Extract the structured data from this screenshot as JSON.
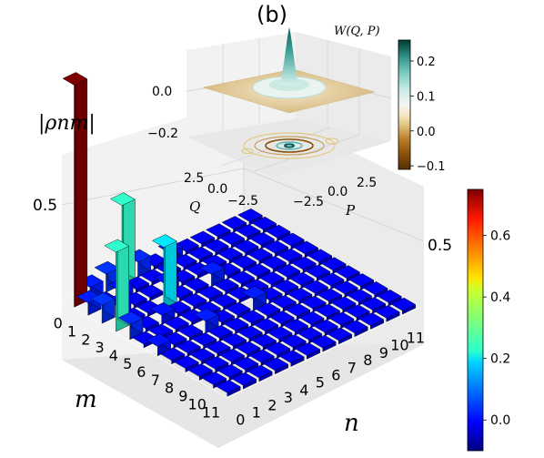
{
  "panel_label": "(b)",
  "chart_data": [
    {
      "type": "bar3d",
      "title": "",
      "zlabel": "|ρnm|",
      "xlabel": "m",
      "ylabel": "n",
      "m_ticks": [
        "0",
        "1",
        "2",
        "3",
        "4",
        "5",
        "6",
        "7",
        "8",
        "9",
        "10",
        "11"
      ],
      "n_ticks": [
        "0",
        "1",
        "2",
        "3",
        "4",
        "5",
        "6",
        "7",
        "8",
        "9",
        "10",
        "11"
      ],
      "z_ticks": [
        "0.5"
      ],
      "zlim": [
        0,
        0.8
      ],
      "bars": [
        {
          "m": 0,
          "n": 0,
          "value": 0.75
        },
        {
          "m": 0,
          "n": 1,
          "value": 0.03
        },
        {
          "m": 1,
          "n": 0,
          "value": 0.03
        },
        {
          "m": 0,
          "n": 2,
          "value": 0.05
        },
        {
          "m": 2,
          "n": 0,
          "value": 0.05
        },
        {
          "m": 0,
          "n": 3,
          "value": 0.26
        },
        {
          "m": 3,
          "n": 0,
          "value": 0.26
        },
        {
          "m": 0,
          "n": 4,
          "value": 0.04
        },
        {
          "m": 4,
          "n": 0,
          "value": 0.04
        },
        {
          "m": 0,
          "n": 6,
          "value": 0.02
        },
        {
          "m": 6,
          "n": 0,
          "value": 0.02
        },
        {
          "m": 3,
          "n": 3,
          "value": 0.2
        },
        {
          "m": 1,
          "n": 2,
          "value": 0.02
        },
        {
          "m": 2,
          "n": 1,
          "value": 0.02
        },
        {
          "m": 2,
          "n": 4,
          "value": 0.02
        },
        {
          "m": 4,
          "n": 2,
          "value": 0.02
        },
        {
          "m": 3,
          "n": 6,
          "value": 0.03
        },
        {
          "m": 6,
          "n": 3,
          "value": 0.03
        },
        {
          "m": 6,
          "n": 6,
          "value": 0.03
        }
      ],
      "colorbar": {
        "cmap": "jet",
        "range": [
          -0.1,
          0.75
        ],
        "ticks": [
          "0.0",
          "0.2",
          "0.4",
          "0.6"
        ]
      }
    },
    {
      "type": "surface3d",
      "title": "W(Q, P)",
      "xlabel": "Q",
      "ylabel": "P",
      "q_ticks": [
        "2.5",
        "0.0",
        "−2.5"
      ],
      "p_ticks": [
        "−2.5",
        "0.0",
        "2.5"
      ],
      "z_ticks": [
        "0.0",
        "−0.2"
      ],
      "zlim": [
        -0.25,
        0.25
      ],
      "peak_value": 0.25,
      "min_value": -0.1,
      "colorbar": {
        "cmap": "BrBG",
        "range": [
          -0.11,
          0.26
        ],
        "ticks": [
          "0.2",
          "0.1",
          "0.0",
          "−0.1"
        ]
      }
    }
  ]
}
